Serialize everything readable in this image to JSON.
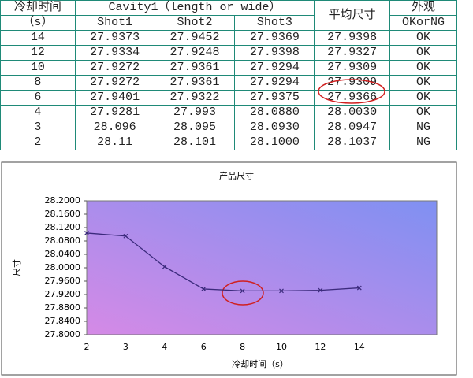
{
  "table": {
    "header_row1": [
      "冷却时间",
      "Cavity1（length or wide）",
      "平均尺寸",
      "外观"
    ],
    "header_row2": [
      "（s）",
      "Shot1",
      "Shot2",
      "Shot3",
      "OKorNG"
    ],
    "rows": [
      [
        "14",
        "27.9373",
        "27.9452",
        "27.9369",
        "27.9398",
        "OK"
      ],
      [
        "12",
        "27.9334",
        "27.9248",
        "27.9398",
        "27.9327",
        "OK"
      ],
      [
        "10",
        "27.9272",
        "27.9361",
        "27.9294",
        "27.9309",
        "OK"
      ],
      [
        "8",
        "27.9272",
        "27.9361",
        "27.9294",
        "27.9309",
        "OK"
      ],
      [
        "6",
        "27.9401",
        "27.9322",
        "27.9375",
        "27.9366",
        "OK"
      ],
      [
        "4",
        "27.9281",
        "27.993",
        "28.0880",
        "28.0030",
        "OK"
      ],
      [
        "3",
        "28.096",
        "28.095",
        "28.0930",
        "28.0947",
        "NG"
      ],
      [
        "2",
        "28.11",
        "28.101",
        "28.1000",
        "28.1037",
        "NG"
      ]
    ]
  },
  "chart_data": {
    "type": "line",
    "title": "产品尺寸",
    "y_label": "尺寸",
    "x_label": "冷却时间（s）",
    "categories": [
      "2",
      "3",
      "4",
      "6",
      "8",
      "10",
      "12",
      "14"
    ],
    "values": [
      28.1037,
      28.0947,
      28.003,
      27.9366,
      27.9309,
      27.9309,
      27.9327,
      27.9398
    ],
    "color": "#3b2a7c",
    "ylim": [
      27.8,
      28.2
    ],
    "yticks": [
      {
        "value": 27.8,
        "label": "27.8000"
      },
      {
        "value": 27.84,
        "label": "27.8400"
      },
      {
        "value": 27.88,
        "label": "27.8800"
      },
      {
        "value": 27.92,
        "label": "27.9200"
      },
      {
        "value": 27.96,
        "label": "27.9600"
      },
      {
        "value": 28.0,
        "label": "28.0000"
      },
      {
        "value": 28.04,
        "label": "28.0400"
      },
      {
        "value": 28.08,
        "label": "28.0800"
      },
      {
        "value": 28.12,
        "label": "28.1200"
      },
      {
        "value": 28.16,
        "label": "28.1600"
      },
      {
        "value": 28.2,
        "label": "28.2000"
      }
    ],
    "grid": false
  }
}
